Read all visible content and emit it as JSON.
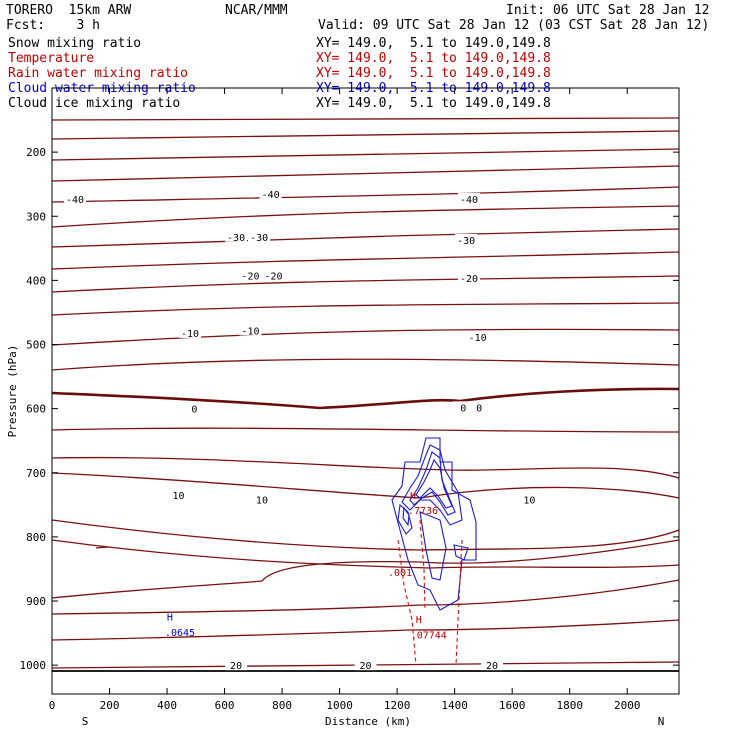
{
  "header": {
    "model": "TORERO  15km ARW",
    "center": "NCAR/MMM",
    "init": "Init: 06 UTC Sat 28 Jan 12",
    "fcst": "Fcst:    3 h",
    "valid": "Valid: 09 UTC Sat 28 Jan 12 (03 CST Sat 28 Jan 12)"
  },
  "legend": [
    {
      "label": "Snow mixing ratio",
      "xy": "XY= 149.0,  5.1 to 149.0,149.8",
      "color": "#000000"
    },
    {
      "label": "Temperature",
      "xy": "XY= 149.0,  5.1 to 149.0,149.8",
      "color": "#c00000"
    },
    {
      "label": "Rain water mixing ratio",
      "xy": "XY= 149.0,  5.1 to 149.0,149.8",
      "color": "#c00000"
    },
    {
      "label": "Cloud water mixing ratio",
      "xy": "XY= 149.0,  5.1 to 149.0,149.8",
      "color": "#0000cc"
    },
    {
      "label": "Cloud ice mixing ratio",
      "xy": "XY= 149.0,  5.1 to 149.0,149.8",
      "color": "#000000"
    }
  ],
  "chart_data": {
    "type": "contour cross-section",
    "xlabel": "Distance (km)",
    "ylabel": "Pressure (hPa)",
    "xlim": [
      0,
      2180
    ],
    "ylim": [
      1045,
      100
    ],
    "x_ticks": [
      "0",
      "200",
      "400",
      "600",
      "800",
      "1000",
      "1200",
      "1400",
      "1600",
      "1800",
      "2000"
    ],
    "y_ticks": [
      "200",
      "300",
      "400",
      "500",
      "600",
      "700",
      "800",
      "900",
      "1000"
    ],
    "x_tick_values": [
      0,
      200,
      400,
      600,
      800,
      1000,
      1200,
      1400,
      1600,
      1800,
      2000
    ],
    "y_tick_values": [
      200,
      300,
      400,
      500,
      600,
      700,
      800,
      900,
      1000
    ],
    "endpoints": {
      "left": "S",
      "right": "N"
    },
    "temperature_contour_labels": [
      {
        "text": "-40",
        "x": 80,
        "p": 273
      },
      {
        "text": "-40",
        "x": 760,
        "p": 265
      },
      {
        "text": "-40",
        "x": 1450,
        "p": 273
      },
      {
        "text": "-30",
        "x": 640,
        "p": 332
      },
      {
        "text": "-30",
        "x": 720,
        "p": 332
      },
      {
        "text": "-30",
        "x": 1440,
        "p": 337
      },
      {
        "text": "-20",
        "x": 690,
        "p": 392
      },
      {
        "text": "-20",
        "x": 770,
        "p": 392
      },
      {
        "text": "-20",
        "x": 1450,
        "p": 396
      },
      {
        "text": "-10",
        "x": 480,
        "p": 482
      },
      {
        "text": "-10",
        "x": 690,
        "p": 478
      },
      {
        "text": "-10",
        "x": 1480,
        "p": 488
      },
      {
        "text": "0",
        "x": 495,
        "p": 600
      },
      {
        "text": "0",
        "x": 1430,
        "p": 598
      },
      {
        "text": "0",
        "x": 1485,
        "p": 598
      },
      {
        "text": "10",
        "x": 440,
        "p": 735
      },
      {
        "text": "10",
        "x": 730,
        "p": 742
      },
      {
        "text": "10",
        "x": 1660,
        "p": 742
      },
      {
        "text": "20",
        "x": 640,
        "p": 1000
      },
      {
        "text": "20",
        "x": 1090,
        "p": 1000
      },
      {
        "text": "20",
        "x": 1530,
        "p": 1000
      }
    ],
    "extrema_labels": [
      {
        "text": "H",
        "x": 410,
        "p": 924,
        "color": "#0000cc"
      },
      {
        "text": ".0645",
        "x": 445,
        "p": 948,
        "color": "#0000cc"
      },
      {
        "text": "H",
        "x": 1255,
        "p": 735,
        "color": "#c00000"
      },
      {
        "text": ".7736",
        "x": 1290,
        "p": 758,
        "color": "#c00000"
      },
      {
        "text": ".001",
        "x": 1210,
        "p": 855,
        "color": "#c00000"
      },
      {
        "text": "H",
        "x": 1275,
        "p": 928,
        "color": "#c00000"
      },
      {
        "text": ".07744",
        "x": 1310,
        "p": 952,
        "color": "#c00000"
      }
    ]
  }
}
